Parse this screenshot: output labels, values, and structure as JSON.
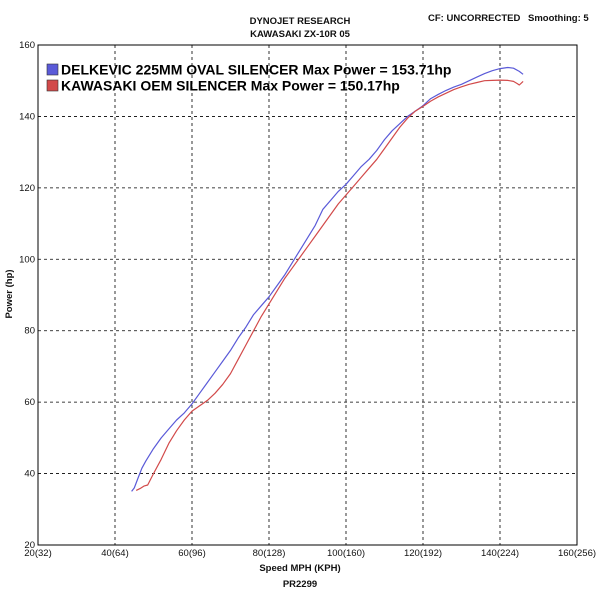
{
  "header": {
    "company": "DYNOJET RESEARCH",
    "model": "KAWASAKI ZX-10R 05",
    "cf": "CF: UNCORRECTED",
    "smoothing": "Smoothing: 5"
  },
  "footer": {
    "run_id": "PR2299"
  },
  "colors": {
    "series_blue": "#5a5ad8",
    "series_red": "#d24a4a",
    "grid": "#000000"
  },
  "chart_data": {
    "type": "line",
    "xlabel": "Speed MPH (KPH)",
    "ylabel": "Power (hp)",
    "xlim": [
      20,
      160
    ],
    "ylim": [
      20,
      160
    ],
    "x_ticks": [
      {
        "value": 20,
        "label": "20(32)"
      },
      {
        "value": 40,
        "label": "40(64)"
      },
      {
        "value": 60,
        "label": "60(96)"
      },
      {
        "value": 80,
        "label": "80(128)"
      },
      {
        "value": 100,
        "label": "100(160)"
      },
      {
        "value": 120,
        "label": "120(192)"
      },
      {
        "value": 140,
        "label": "140(224)"
      },
      {
        "value": 160,
        "label": "160(256)"
      }
    ],
    "y_ticks": [
      20,
      40,
      60,
      80,
      100,
      120,
      140,
      160
    ],
    "grid": true,
    "legend_position": "top-left",
    "series": [
      {
        "name": "DELKEVIC 225MM OVAL SILENCER Max Power = 153.71hp",
        "color": "#5a5ad8",
        "points": [
          [
            44.3,
            35.0
          ],
          [
            45,
            36
          ],
          [
            46,
            38.8
          ],
          [
            47,
            41.5
          ],
          [
            48,
            43.5
          ],
          [
            50,
            47
          ],
          [
            52,
            50
          ],
          [
            54,
            52.5
          ],
          [
            56,
            55
          ],
          [
            58,
            57
          ],
          [
            60,
            59.5
          ],
          [
            62,
            62.5
          ],
          [
            64,
            65.5
          ],
          [
            66,
            68.5
          ],
          [
            68,
            71.5
          ],
          [
            70,
            74.5
          ],
          [
            72,
            78
          ],
          [
            74,
            81
          ],
          [
            76,
            84.5
          ],
          [
            78,
            87
          ],
          [
            80,
            89.5
          ],
          [
            82,
            92.5
          ],
          [
            84,
            95.5
          ],
          [
            86,
            99
          ],
          [
            88,
            102.5
          ],
          [
            90,
            106
          ],
          [
            92,
            109.5
          ],
          [
            94,
            114
          ],
          [
            96,
            116.5
          ],
          [
            98,
            119
          ],
          [
            100,
            121
          ],
          [
            102,
            123.5
          ],
          [
            104,
            126
          ],
          [
            106,
            128
          ],
          [
            108,
            130.5
          ],
          [
            110,
            133.5
          ],
          [
            112,
            136
          ],
          [
            114,
            138
          ],
          [
            116,
            140
          ],
          [
            118,
            141.5
          ],
          [
            120,
            143
          ],
          [
            122,
            145
          ],
          [
            124,
            146.2
          ],
          [
            126,
            147.3
          ],
          [
            128,
            148.2
          ],
          [
            130,
            149
          ],
          [
            132,
            150
          ],
          [
            134,
            151
          ],
          [
            136,
            152
          ],
          [
            138,
            152.8
          ],
          [
            140,
            153.4
          ],
          [
            142,
            153.7
          ],
          [
            143.5,
            153.5
          ],
          [
            145,
            152.6
          ],
          [
            146,
            151.8
          ]
        ]
      },
      {
        "name": "KAWASAKI OEM SILENCER Max Power = 150.17hp",
        "color": "#d24a4a",
        "points": [
          [
            45.5,
            35.3
          ],
          [
            46.5,
            35.8
          ],
          [
            47.5,
            36.5
          ],
          [
            48.5,
            36.8
          ],
          [
            50,
            40
          ],
          [
            52,
            44
          ],
          [
            54,
            48.5
          ],
          [
            56,
            52
          ],
          [
            58,
            55
          ],
          [
            60,
            57.5
          ],
          [
            62,
            59
          ],
          [
            64,
            60.5
          ],
          [
            66,
            62.5
          ],
          [
            68,
            65
          ],
          [
            70,
            68
          ],
          [
            72,
            72
          ],
          [
            74,
            76
          ],
          [
            76,
            80
          ],
          [
            78,
            84
          ],
          [
            80,
            87.5
          ],
          [
            82,
            91
          ],
          [
            84,
            94.5
          ],
          [
            86,
            97.5
          ],
          [
            88,
            100.5
          ],
          [
            90,
            103.5
          ],
          [
            92,
            106.5
          ],
          [
            94,
            109.5
          ],
          [
            96,
            112.5
          ],
          [
            98,
            115.5
          ],
          [
            100,
            118
          ],
          [
            102,
            120.5
          ],
          [
            104,
            123
          ],
          [
            106,
            125.5
          ],
          [
            108,
            128
          ],
          [
            110,
            131
          ],
          [
            112,
            134
          ],
          [
            114,
            137
          ],
          [
            116,
            139.5
          ],
          [
            118,
            141.5
          ],
          [
            120,
            142.8
          ],
          [
            122,
            144.3
          ],
          [
            124,
            145.5
          ],
          [
            126,
            146.5
          ],
          [
            128,
            147.5
          ],
          [
            130,
            148.3
          ],
          [
            132,
            149
          ],
          [
            134,
            149.5
          ],
          [
            136,
            150
          ],
          [
            138,
            150.1
          ],
          [
            140,
            150.17
          ],
          [
            142,
            150.1
          ],
          [
            143.5,
            149.8
          ],
          [
            144.5,
            149.2
          ],
          [
            145,
            148.8
          ],
          [
            146,
            149.8
          ]
        ]
      }
    ]
  }
}
